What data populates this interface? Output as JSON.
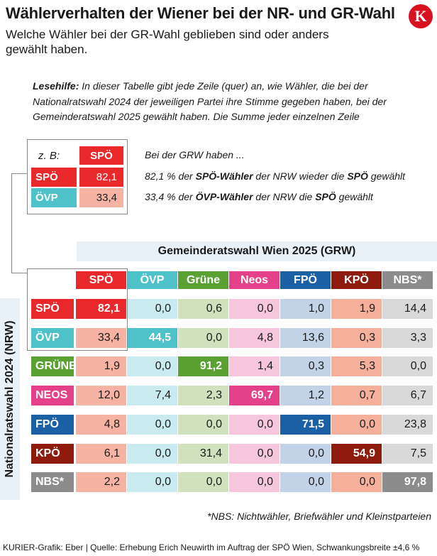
{
  "header": {
    "title": "Wählerverhalten der Wiener bei der NR- und GR-Wahl",
    "subtitle": "Welche Wähler bei der GR-Wahl geblieben sind oder anders gewählt haben.",
    "logo_letter": "K"
  },
  "reading_help": {
    "label": "Lesehilfe:",
    "text": "In dieser Tabelle gibt jede Zeile (quer) an, wie Wähler, die bei der Nationalratswahl 2024 der jeweiligen Partei ihre Stimme gegeben haben, bei der Gemeinderatswahl 2025 gewählt haben. Die Summe jeder einzelnen Zeile"
  },
  "example": {
    "zb_label": "z. B:",
    "header_party": "SPÖ",
    "rows": [
      {
        "party": "SPÖ",
        "value": "82,1"
      },
      {
        "party": "ÖVP",
        "value": "33,4"
      }
    ],
    "text_intro": "Bei der GRW haben ...",
    "text_row1": {
      "a": "82,1 % der ",
      "b": "SPÖ-Wähler",
      "c": " der NRW wieder die ",
      "d": "SPÖ",
      "e": " gewählt"
    },
    "text_row2": {
      "a": "33,4 % der ",
      "b": "ÖVP-Wähler",
      "c": " der NRW die ",
      "d": "SPÖ",
      "e": " gewählt"
    }
  },
  "colors": {
    "SPÖ": "#e8282b",
    "ÖVP": "#4fc1c9",
    "GRÜNE": "#5aa032",
    "NEOS": "#e5418a",
    "FPÖ": "#1b5fa5",
    "KPÖ": "#8e1b0e",
    "NBS*": "#8c8c8c",
    "light": {
      "SPÖ": "#f6b3a3",
      "ÖVP": "#c9ebef",
      "GRÜNE": "#cfe1bd",
      "NEOS": "#f6c6dc",
      "FPÖ": "#c2d3e7",
      "KPÖ": "#f4b09b",
      "NBS*": "#d9d9d9"
    }
  },
  "chart_data": {
    "type": "table",
    "column_group_label": "Gemeinderatswahl Wien 2025 (GRW)",
    "row_group_label": "Nationalratswahl 2024 (NRW)",
    "columns": [
      "SPÖ",
      "ÖVP",
      "Grüne",
      "Neos",
      "FPÖ",
      "KPÖ",
      "NBS*"
    ],
    "rows": [
      {
        "party": "SPÖ",
        "values": [
          "82,1",
          "0,0",
          "0,6",
          "0,0",
          "1,0",
          "1,9",
          "14,4"
        ]
      },
      {
        "party": "ÖVP",
        "values": [
          "33,4",
          "44,5",
          "0,0",
          "4,8",
          "13,6",
          "0,3",
          "3,3"
        ]
      },
      {
        "party": "GRÜNE",
        "values": [
          "1,9",
          "0,0",
          "91,2",
          "1,4",
          "0,3",
          "5,3",
          "0,0"
        ]
      },
      {
        "party": "NEOS",
        "values": [
          "12,0",
          "7,4",
          "2,3",
          "69,7",
          "1,2",
          "0,7",
          "6,7"
        ]
      },
      {
        "party": "FPÖ",
        "values": [
          "4,8",
          "0,0",
          "0,0",
          "0,0",
          "71,5",
          "0,0",
          "23,8"
        ]
      },
      {
        "party": "KPÖ",
        "values": [
          "6,1",
          "0,0",
          "31,4",
          "0,0",
          "0,0",
          "54,9",
          "7,5"
        ]
      },
      {
        "party": "NBS*",
        "values": [
          "2,2",
          "0,0",
          "0,0",
          "0,0",
          "0,0",
          "0,0",
          "97,8"
        ]
      }
    ]
  },
  "footnote": "*NBS: Nichtwähler, Briefwähler und Kleinstparteien",
  "source": "KURIER-Grafik: Eber | Quelle: Erhebung Erich Neuwirth im Auftrag der SPÖ Wien, Schwankungsbreite ±4,6 %"
}
